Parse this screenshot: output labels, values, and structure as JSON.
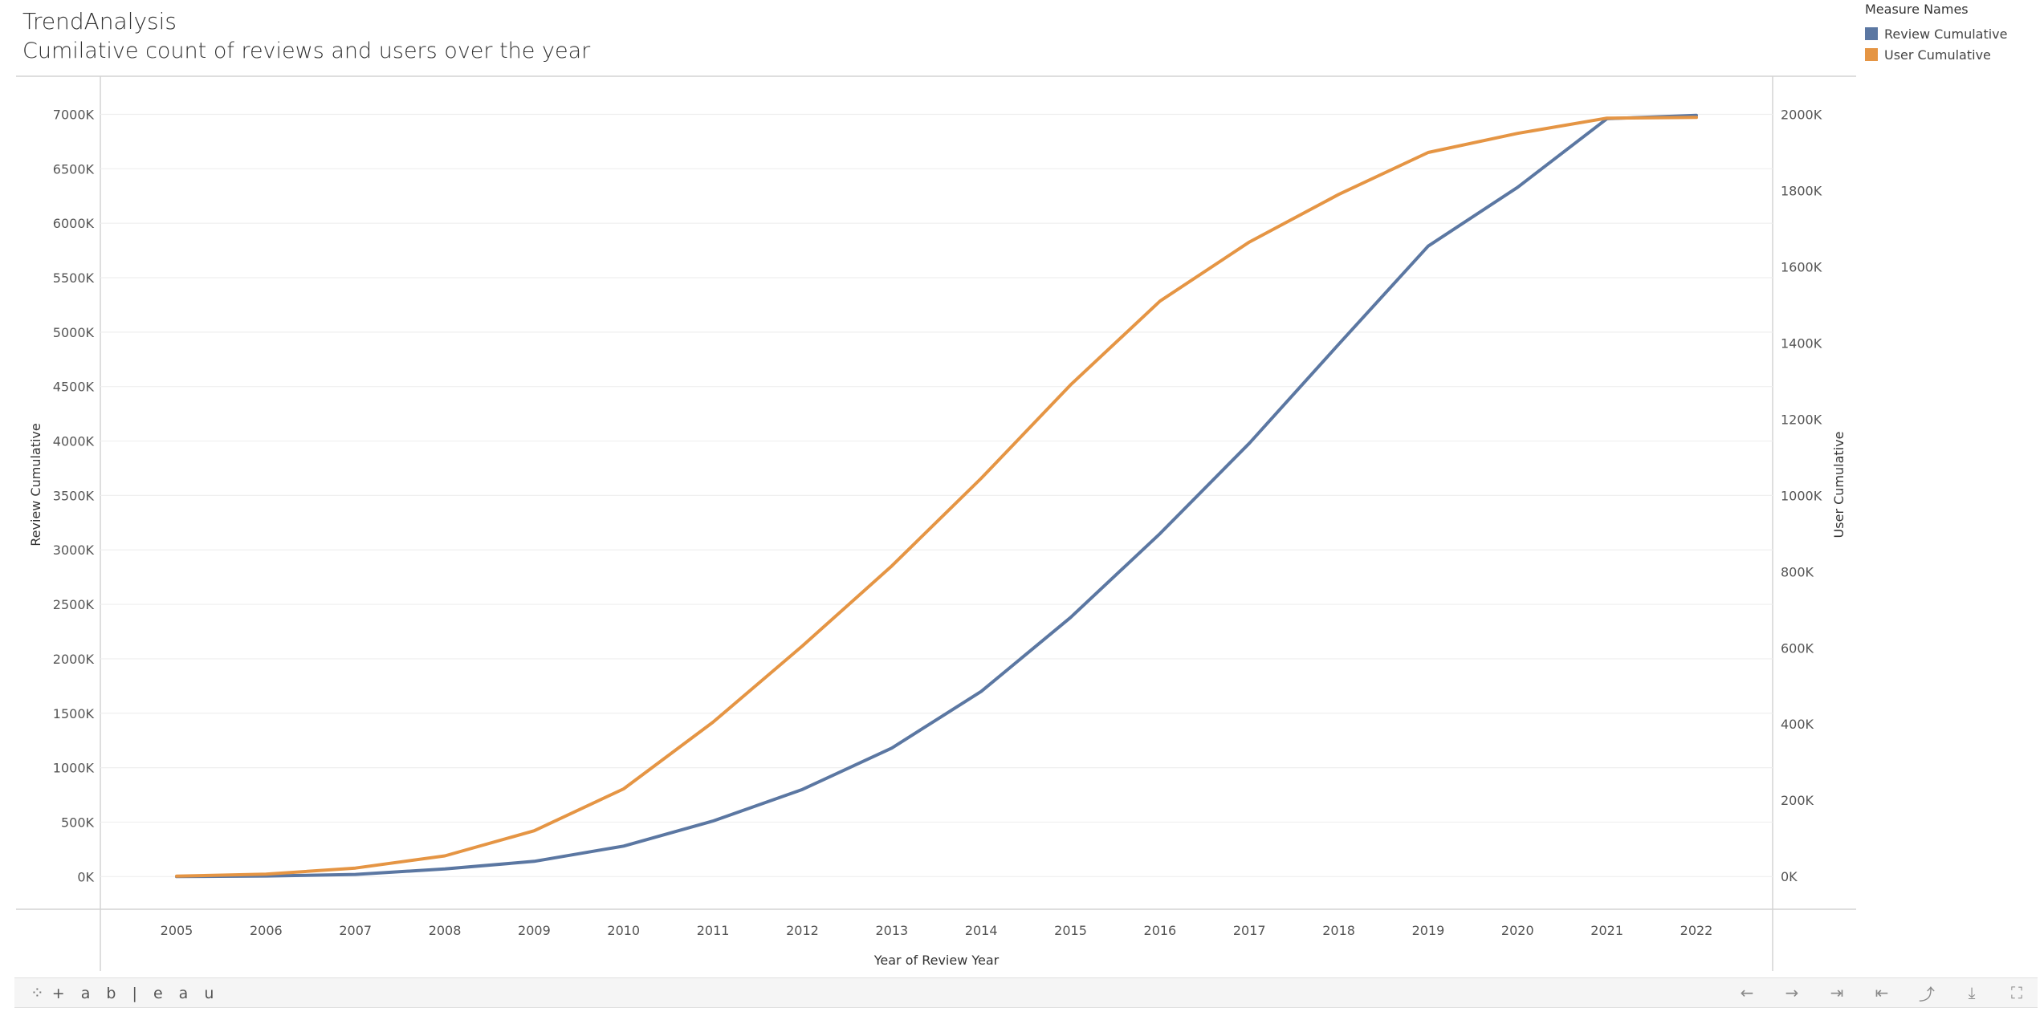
{
  "header": {
    "title": "TrendAnalysis",
    "subtitle": "Cumilative count of reviews and users over the year"
  },
  "legend": {
    "title": "Measure Names",
    "items": [
      {
        "label": "Review Cumulative",
        "color": "#5b77a2"
      },
      {
        "label": "User Cumulative",
        "color": "#e59544"
      }
    ]
  },
  "chart_data": {
    "type": "line",
    "xlabel": "Year of Review Year",
    "ylabel": "Review Cumulative",
    "y2label": "User Cumulative",
    "x": [
      2005,
      2006,
      2007,
      2008,
      2009,
      2010,
      2011,
      2012,
      2013,
      2014,
      2015,
      2016,
      2017,
      2018,
      2019,
      2020,
      2021,
      2022
    ],
    "ylim": [
      -300,
      7350
    ],
    "y2lim": [
      -86,
      2100
    ],
    "yticks": [
      0,
      500,
      1000,
      1500,
      2000,
      2500,
      3000,
      3500,
      4000,
      4500,
      5000,
      5500,
      6000,
      6500,
      7000
    ],
    "y2ticks": [
      0,
      200,
      400,
      600,
      800,
      1000,
      1200,
      1400,
      1600,
      1800,
      2000
    ],
    "tick_suffix": "K",
    "grid": true,
    "legend_position": "top-right",
    "series": [
      {
        "name": "Review Cumulative",
        "axis": "left",
        "color": "#5b77a2",
        "values": [
          0,
          5,
          20,
          70,
          140,
          280,
          510,
          800,
          1180,
          1700,
          2380,
          3150,
          3980,
          4890,
          5790,
          6330,
          6960,
          6990
        ]
      },
      {
        "name": "User Cumulative",
        "axis": "right",
        "color": "#e59544",
        "values": [
          1,
          6,
          22,
          54,
          120,
          230,
          405,
          605,
          815,
          1045,
          1290,
          1510,
          1665,
          1790,
          1900,
          1950,
          1990,
          1992
        ]
      }
    ]
  },
  "toolbar": {
    "logo_text": "+ a b | e a u",
    "logo_mark": "⁘",
    "undo_icon": "←",
    "redo_icon": "→",
    "revert_icon": "⇥",
    "reset_icon": "⇤",
    "share_icon": "⤴",
    "download_icon": "⤓",
    "fullscreen_icon": "⛶"
  }
}
